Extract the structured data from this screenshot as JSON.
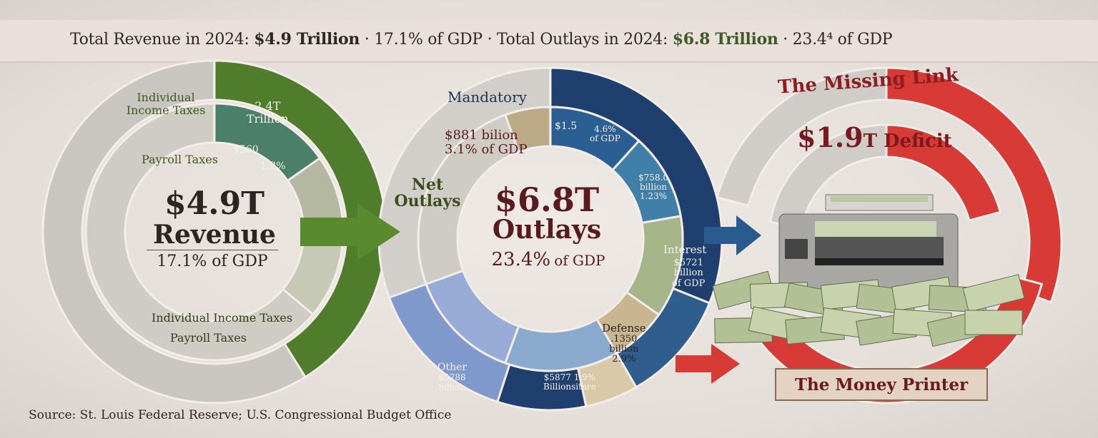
{
  "header": {
    "revenue_label": "Total Revenue in 2024:",
    "revenue_value": "$4.9 Trillion",
    "revenue_gdp": "· 17.1% of GDP ·",
    "outlays_label": "Total Outlays in 2024:",
    "outlays_value": "$6.8 Trillion",
    "outlays_gdp": "· 23.4⁴ of GDP"
  },
  "revenue": {
    "total": "$4.9T",
    "title": "Revenue",
    "gdp": "17.1% of GDP",
    "individual_label": "Individual Income Taxes",
    "individual_value": "2.4T",
    "individual_unit": "Trillion",
    "payroll_label": "Payroll Taxes",
    "payroll_value": "$560",
    "payroll_pct": "1.3%",
    "bottom_label_1": "Individual Income Taxes",
    "bottom_label_2": "Payroll Taxes"
  },
  "outlays": {
    "net_label": "Net Outlays",
    "total": "$6.8T",
    "title": "Outlays",
    "gdp_pct": "23.4%",
    "gdp_suffix": "of GDP",
    "mandatory_label": "Mandatory",
    "mandatory_value": "$881 bilion",
    "mandatory_gdp": "3.1% of GDP",
    "seg1_value": "$1.5",
    "seg1_pct": "4.6%",
    "seg1_gdp": "of GDP",
    "seg2_value": "$758.0",
    "seg2_unit": "billion",
    "seg2_pct": "1.23%",
    "interest_label": "Interest",
    "interest_value": "$5721",
    "interest_unit": "billion",
    "interest_gdp": "of GDP",
    "defense_label": "Defense",
    "defense_value": ".1350",
    "defense_unit": "billion",
    "defense_pct": "2.9%",
    "other_label": "Other",
    "other_value": "$5788",
    "other_unit": "billion",
    "misc_value": "$5877 1.9%",
    "misc_unit": "Billionsitare"
  },
  "deficit": {
    "title": "The Missing Link",
    "value": "$1.9",
    "suffix": "T Deficit",
    "printer_label": "The Money Printer"
  },
  "source": "Source: St. Louis Federal Reserve; U.S. Congressional Budget Office",
  "colors": {
    "revenue_green": "#4f7d2c",
    "outlays_navy": "#1f3f6e",
    "deficit_red": "#d83a35",
    "title_maroon": "#5a1b1e"
  }
}
